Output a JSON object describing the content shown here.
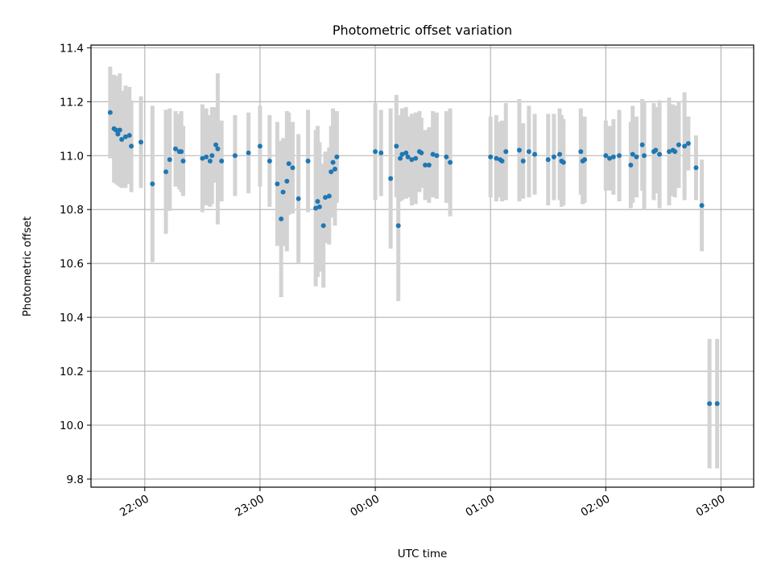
{
  "chart_data": {
    "type": "scatter",
    "title": "Photometric offset variation",
    "xlabel": "UTC time",
    "ylabel": "Photometric offset",
    "ylim": [
      9.77,
      11.41
    ],
    "xlim": [
      "21:32",
      "03:17"
    ],
    "x_unit": "UTC clock time, HH:MM",
    "yticks": [
      "9.8",
      "10.0",
      "10.2",
      "10.4",
      "10.6",
      "10.8",
      "11.0",
      "11.2",
      "11.4"
    ],
    "xticks": [
      "22:00",
      "23:00",
      "00:00",
      "01:00",
      "02:00",
      "03:00"
    ],
    "grid": true,
    "colors": {
      "marker": "#1f77b4",
      "errorbar": "#d3d3d3",
      "grid": "#b0b0b0"
    },
    "series": [
      {
        "x": [
          "21:42",
          "21:44",
          "21:45",
          "21:46",
          "21:47",
          "21:48",
          "21:50",
          "21:52",
          "21:53",
          "21:58",
          "22:04",
          "22:11",
          "22:13",
          "22:16",
          "22:18",
          "22:19",
          "22:20",
          "22:30",
          "22:32",
          "22:34",
          "22:35",
          "22:37",
          "22:38",
          "22:40",
          "22:47",
          "22:54",
          "23:00",
          "23:05",
          "23:09",
          "23:11",
          "23:12",
          "23:14",
          "23:15",
          "23:17",
          "23:20",
          "23:25",
          "23:29",
          "23:30",
          "23:31",
          "23:33",
          "23:34",
          "23:36",
          "23:37",
          "23:38",
          "23:39",
          "23:40",
          "00:00",
          "00:03",
          "00:08",
          "00:11",
          "00:12",
          "00:13",
          "00:14",
          "00:16",
          "00:17",
          "00:19",
          "00:21",
          "00:23",
          "00:24",
          "00:26",
          "00:28",
          "00:30",
          "00:32",
          "00:37",
          "00:39",
          "01:00",
          "01:03",
          "01:05",
          "01:06",
          "01:08",
          "01:15",
          "01:17",
          "01:20",
          "01:23",
          "01:30",
          "01:33",
          "01:36",
          "01:37",
          "01:38",
          "01:47",
          "01:48",
          "01:49",
          "02:00",
          "02:02",
          "02:04",
          "02:07",
          "02:13",
          "02:14",
          "02:16",
          "02:19",
          "02:20",
          "02:25",
          "02:26",
          "02:28",
          "02:33",
          "02:35",
          "02:36",
          "02:38",
          "02:41",
          "02:43",
          "02:47",
          "02:50",
          "02:54",
          "02:58"
        ],
        "y": [
          11.16,
          11.1,
          11.095,
          11.08,
          11.095,
          11.06,
          11.07,
          11.075,
          11.035,
          11.05,
          10.895,
          10.94,
          10.985,
          11.025,
          11.015,
          11.015,
          10.98,
          10.99,
          10.995,
          10.98,
          11.0,
          11.04,
          11.025,
          10.98,
          11.0,
          11.01,
          11.035,
          10.98,
          10.895,
          10.765,
          10.865,
          10.905,
          10.97,
          10.955,
          10.84,
          10.98,
          10.805,
          10.83,
          10.81,
          10.74,
          10.845,
          10.85,
          10.94,
          10.975,
          10.95,
          10.995,
          11.015,
          11.01,
          10.915,
          11.035,
          10.74,
          10.99,
          11.005,
          11.01,
          10.995,
          10.985,
          10.99,
          11.015,
          11.01,
          10.965,
          10.965,
          11.005,
          11.0,
          10.995,
          10.975,
          10.995,
          10.99,
          10.985,
          10.98,
          11.015,
          11.02,
          10.98,
          11.015,
          11.005,
          10.985,
          10.995,
          11.005,
          10.98,
          10.975,
          11.015,
          10.98,
          10.985,
          11.0,
          10.99,
          10.995,
          11.0,
          10.965,
          11.005,
          10.995,
          11.04,
          11.0,
          11.015,
          11.02,
          11.005,
          11.015,
          11.02,
          11.015,
          11.04,
          11.035,
          11.045,
          10.955,
          10.815,
          10.08,
          10.08
        ],
        "yerr": [
          0.17,
          0.2,
          0.2,
          0.19,
          0.21,
          0.18,
          0.19,
          0.18,
          0.17,
          0.17,
          0.29,
          0.23,
          0.19,
          0.14,
          0.14,
          0.15,
          0.13,
          0.2,
          0.18,
          0.17,
          0.18,
          0.14,
          0.28,
          0.15,
          0.15,
          0.15,
          0.15,
          0.17,
          0.23,
          0.29,
          0.2,
          0.26,
          0.19,
          0.17,
          0.24,
          0.19,
          0.29,
          0.28,
          0.24,
          0.23,
          0.17,
          0.18,
          0.17,
          0.2,
          0.21,
          0.17,
          0.18,
          0.16,
          0.26,
          0.19,
          0.28,
          0.16,
          0.17,
          0.17,
          0.15,
          0.17,
          0.17,
          0.15,
          0.13,
          0.13,
          0.14,
          0.16,
          0.16,
          0.17,
          0.2,
          0.15,
          0.16,
          0.14,
          0.15,
          0.18,
          0.19,
          0.14,
          0.17,
          0.15,
          0.17,
          0.16,
          0.17,
          0.17,
          0.16,
          0.16,
          0.16,
          0.16,
          0.13,
          0.12,
          0.14,
          0.17,
          0.16,
          0.18,
          0.15,
          0.17,
          0.2,
          0.18,
          0.16,
          0.2,
          0.2,
          0.17,
          0.17,
          0.16,
          0.2,
          0.1,
          0.12,
          0.17,
          0.24,
          0.24
        ]
      }
    ]
  }
}
